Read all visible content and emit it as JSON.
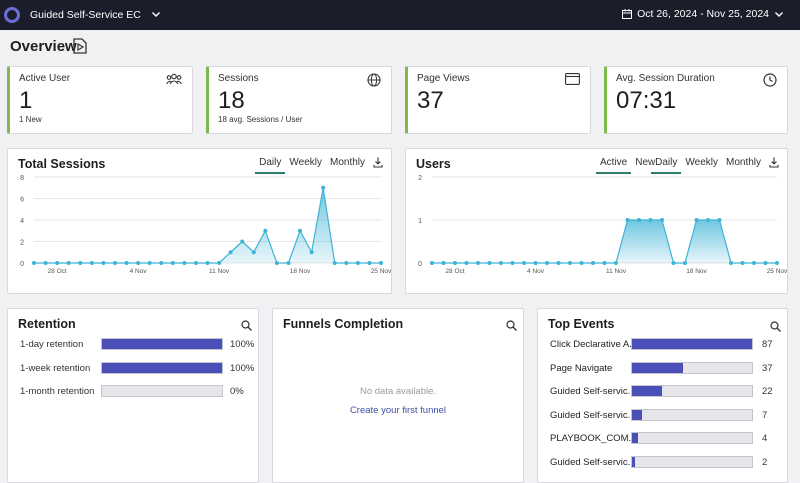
{
  "header": {
    "app_title": "Guided Self-Service EC",
    "date_range": "Oct 26, 2024 - Nov 25, 2024"
  },
  "page": {
    "title": "Overview"
  },
  "kpis": [
    {
      "label": "Active User",
      "value": "1",
      "sub": "1 New",
      "icon": "users-icon"
    },
    {
      "label": "Sessions",
      "value": "18",
      "sub": "18 avg. Sessions / User",
      "icon": "globe-icon"
    },
    {
      "label": "Page Views",
      "value": "37",
      "sub": "",
      "icon": "browser-window-icon"
    },
    {
      "label": "Avg. Session Duration",
      "value": "07:31",
      "sub": "",
      "icon": "clock-icon"
    }
  ],
  "total_sessions": {
    "title": "Total Sessions",
    "tabs": [
      "Daily",
      "Weekly",
      "Monthly"
    ],
    "active_tab": "Daily"
  },
  "users": {
    "title": "Users",
    "filters": [
      "Active",
      "New"
    ],
    "active_filter": "Active",
    "tabs": [
      "Daily",
      "Weekly",
      "Monthly"
    ],
    "active_tab": "Daily"
  },
  "chart_data": [
    {
      "type": "area",
      "title": "Total Sessions",
      "x_ticks": [
        "28 Oct",
        "4 Nov",
        "11 Nov",
        "18 Nov",
        "25 Nov"
      ],
      "y_ticks": [
        0,
        2,
        4,
        6,
        8
      ],
      "ylim": [
        0,
        8
      ],
      "x": [
        "Oct 26",
        "Oct 27",
        "Oct 28",
        "Oct 29",
        "Oct 30",
        "Oct 31",
        "Nov 1",
        "Nov 2",
        "Nov 3",
        "Nov 4",
        "Nov 5",
        "Nov 6",
        "Nov 7",
        "Nov 8",
        "Nov 9",
        "Nov 10",
        "Nov 11",
        "Nov 12",
        "Nov 13",
        "Nov 14",
        "Nov 15",
        "Nov 16",
        "Nov 17",
        "Nov 18",
        "Nov 19",
        "Nov 20",
        "Nov 21",
        "Nov 22",
        "Nov 23",
        "Nov 24",
        "Nov 25"
      ],
      "values": [
        0,
        0,
        0,
        0,
        0,
        0,
        0,
        0,
        0,
        0,
        0,
        0,
        0,
        0,
        0,
        0,
        0,
        1,
        2,
        1,
        3,
        0,
        0,
        3,
        1,
        7,
        0,
        0,
        0,
        0,
        0
      ],
      "color": "#3fb3d6"
    },
    {
      "type": "area",
      "title": "Users",
      "x_ticks": [
        "28 Oct",
        "4 Nov",
        "11 Nov",
        "18 Nov",
        "25 Nov"
      ],
      "y_ticks": [
        0,
        1,
        2
      ],
      "ylim": [
        0,
        2
      ],
      "x": [
        "Oct 26",
        "Oct 27",
        "Oct 28",
        "Oct 29",
        "Oct 30",
        "Oct 31",
        "Nov 1",
        "Nov 2",
        "Nov 3",
        "Nov 4",
        "Nov 5",
        "Nov 6",
        "Nov 7",
        "Nov 8",
        "Nov 9",
        "Nov 10",
        "Nov 11",
        "Nov 12",
        "Nov 13",
        "Nov 14",
        "Nov 15",
        "Nov 16",
        "Nov 17",
        "Nov 18",
        "Nov 19",
        "Nov 20",
        "Nov 21",
        "Nov 22",
        "Nov 23",
        "Nov 24",
        "Nov 25"
      ],
      "values": [
        0,
        0,
        0,
        0,
        0,
        0,
        0,
        0,
        0,
        0,
        0,
        0,
        0,
        0,
        0,
        0,
        0,
        1,
        1,
        1,
        1,
        0,
        0,
        1,
        1,
        1,
        0,
        0,
        0,
        0,
        0
      ],
      "color": "#3fb3d6"
    }
  ],
  "retention": {
    "title": "Retention",
    "rows": [
      {
        "label": "1-day retention",
        "value": 100,
        "display": "100%"
      },
      {
        "label": "1-week retention",
        "value": 100,
        "display": "100%"
      },
      {
        "label": "1-month retention",
        "value": 0,
        "display": "0%"
      }
    ]
  },
  "funnels": {
    "title": "Funnels Completion",
    "empty_text": "No data available.",
    "link_text": "Create your first funnel"
  },
  "top_events": {
    "title": "Top Events",
    "max": 87,
    "rows": [
      {
        "label": "Click Declarative A...",
        "value": 87
      },
      {
        "label": "Page Navigate",
        "value": 37
      },
      {
        "label": "Guided Self-servic...",
        "value": 22
      },
      {
        "label": "Guided Self-servic...",
        "value": 7
      },
      {
        "label": "PLAYBOOK_COM...",
        "value": 4
      },
      {
        "label": "Guided Self-servic...",
        "value": 2
      }
    ]
  },
  "colors": {
    "kpi_accent": "#7cba4c",
    "bar": "#4b4fb8",
    "line": "#3fb3d6",
    "header_bg": "#1c1d2b"
  }
}
